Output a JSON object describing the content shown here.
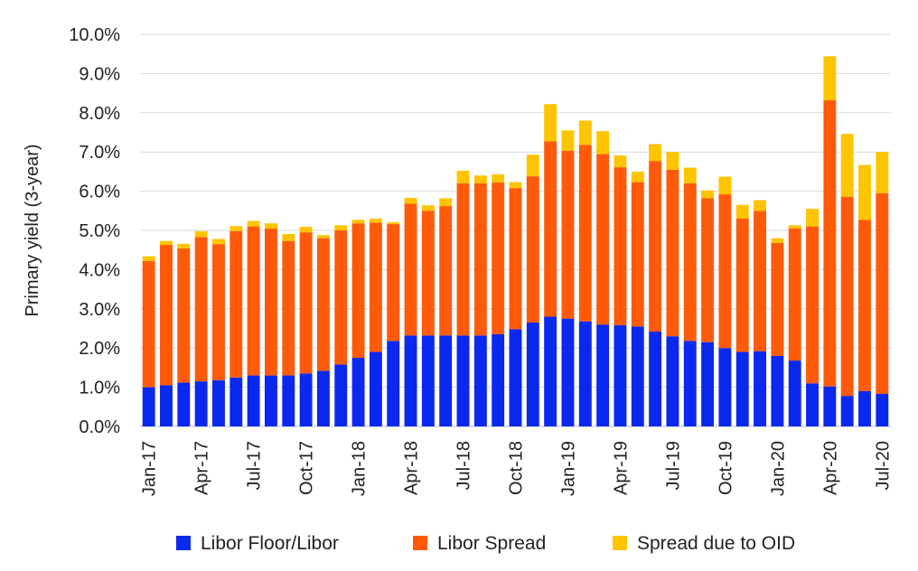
{
  "chart_data": {
    "type": "bar",
    "stacked": true,
    "title": "",
    "xlabel": "",
    "ylabel": "Primary yield (3-year)",
    "ylim": [
      0,
      10
    ],
    "y_unit": "%",
    "y_ticks": [
      "0.0%",
      "1.0%",
      "2.0%",
      "3.0%",
      "4.0%",
      "5.0%",
      "6.0%",
      "7.0%",
      "8.0%",
      "9.0%",
      "10.0%"
    ],
    "grid": "horizontal",
    "legend_position": "bottom",
    "categories": [
      "Jan-17",
      "Feb-17",
      "Mar-17",
      "Apr-17",
      "May-17",
      "Jun-17",
      "Jul-17",
      "Aug-17",
      "Sep-17",
      "Oct-17",
      "Nov-17",
      "Dec-17",
      "Jan-18",
      "Feb-18",
      "Mar-18",
      "Apr-18",
      "May-18",
      "Jun-18",
      "Jul-18",
      "Aug-18",
      "Sep-18",
      "Oct-18",
      "Nov-18",
      "Dec-18",
      "Jan-19",
      "Feb-19",
      "Mar-19",
      "Apr-19",
      "May-19",
      "Jun-19",
      "Jul-19",
      "Aug-19",
      "Sep-19",
      "Oct-19",
      "Nov-19",
      "Dec-19",
      "Jan-20",
      "Feb-20",
      "Mar-20",
      "Apr-20",
      "May-20",
      "Jun-20",
      "Jul-20"
    ],
    "x_tick_labels": [
      "Jan-17",
      "Apr-17",
      "Jul-17",
      "Oct-17",
      "Jan-18",
      "Apr-18",
      "Jul-18",
      "Oct-18",
      "Jan-19",
      "Apr-19",
      "Jul-19",
      "Oct-19",
      "Jan-20",
      "Apr-20",
      "Jul-20"
    ],
    "series": [
      {
        "name": "Libor Floor/Libor",
        "color": "#0a28ee",
        "values": [
          1.0,
          1.05,
          1.12,
          1.15,
          1.18,
          1.25,
          1.3,
          1.3,
          1.3,
          1.35,
          1.42,
          1.58,
          1.75,
          1.9,
          2.18,
          2.32,
          2.32,
          2.32,
          2.32,
          2.32,
          2.35,
          2.48,
          2.65,
          2.8,
          2.75,
          2.68,
          2.6,
          2.58,
          2.55,
          2.42,
          2.3,
          2.18,
          2.15,
          2.0,
          1.9,
          1.92,
          1.8,
          1.68,
          1.1,
          1.02,
          0.78,
          0.9,
          0.83
        ]
      },
      {
        "name": "Libor Spread",
        "color": "#ff5a0a",
        "values": [
          3.22,
          3.58,
          3.42,
          3.68,
          3.47,
          3.73,
          3.8,
          3.75,
          3.43,
          3.6,
          3.38,
          3.42,
          3.43,
          3.3,
          2.98,
          3.36,
          3.18,
          3.3,
          3.88,
          3.88,
          3.87,
          3.6,
          3.73,
          4.47,
          4.28,
          4.5,
          4.35,
          4.03,
          3.68,
          4.35,
          4.25,
          4.02,
          3.67,
          3.92,
          3.4,
          3.58,
          2.88,
          3.37,
          4.0,
          7.3,
          5.08,
          4.37,
          5.12
        ]
      },
      {
        "name": "Spread due to OID",
        "color": "#ffc400",
        "values": [
          0.12,
          0.1,
          0.12,
          0.15,
          0.13,
          0.13,
          0.14,
          0.13,
          0.18,
          0.14,
          0.08,
          0.13,
          0.09,
          0.1,
          0.05,
          0.15,
          0.14,
          0.2,
          0.32,
          0.2,
          0.21,
          0.15,
          0.55,
          0.95,
          0.52,
          0.62,
          0.58,
          0.3,
          0.27,
          0.43,
          0.45,
          0.4,
          0.2,
          0.45,
          0.35,
          0.27,
          0.12,
          0.08,
          0.45,
          1.12,
          1.6,
          1.4,
          1.05
        ]
      }
    ]
  }
}
